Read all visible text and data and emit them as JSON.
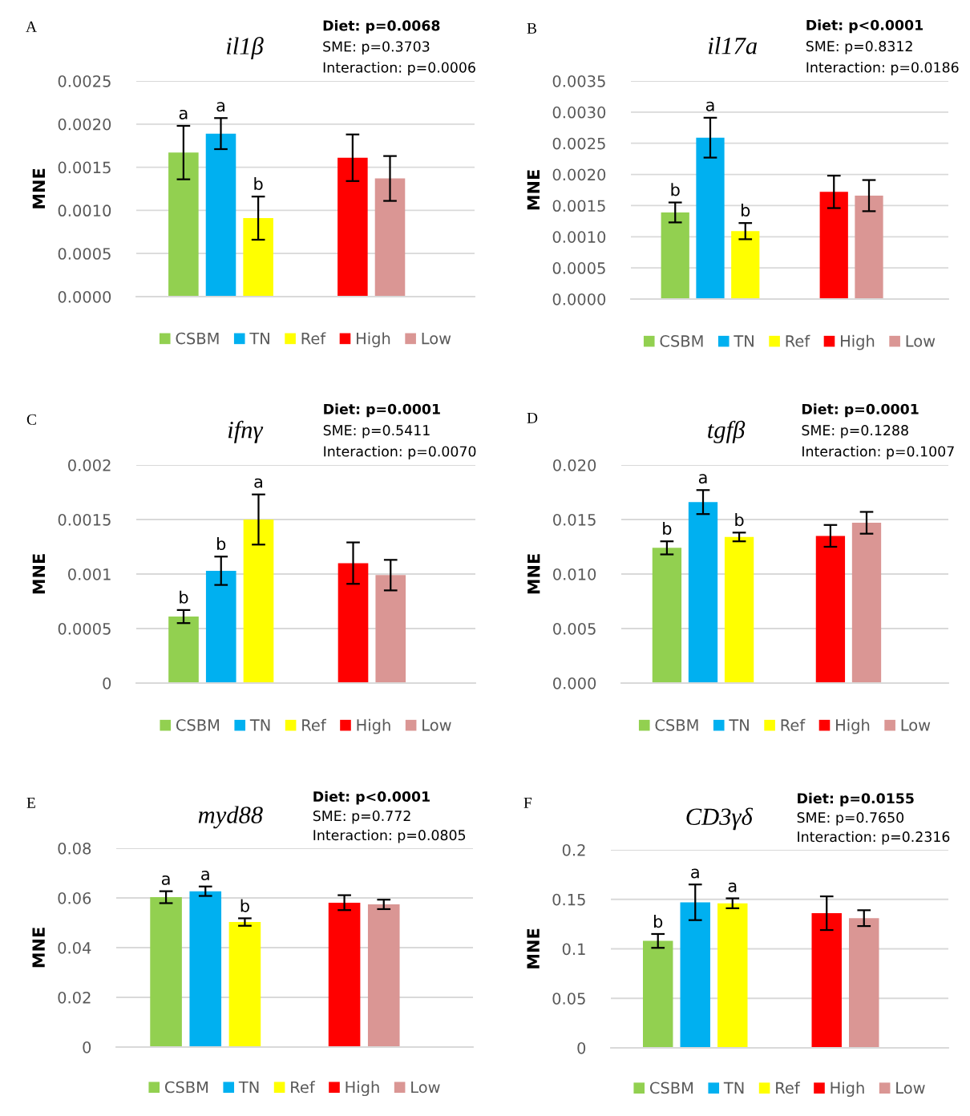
{
  "chart_data": [
    {
      "type": "bar",
      "title": "il1β",
      "ylabel": "MNE",
      "categories": [
        null,
        null
      ],
      "series": [
        {
          "name": "CSBM",
          "color": "#92d050",
          "values": [
            0.00167,
            null
          ],
          "errors": [
            0.00031,
            null
          ],
          "value_labels": [
            "a",
            null
          ]
        },
        {
          "name": "TN",
          "color": "#00b0f0",
          "values": [
            0.00189,
            null
          ],
          "errors": [
            0.00018,
            null
          ],
          "value_labels": [
            "a",
            null
          ]
        },
        {
          "name": "Ref",
          "color": "#ffff00",
          "values": [
            0.00091,
            null
          ],
          "errors": [
            0.00025,
            null
          ],
          "value_labels": [
            "b",
            null
          ]
        },
        {
          "name": "High",
          "color": "#ff0000",
          "values": [
            null,
            0.00161
          ],
          "errors": [
            null,
            0.00027
          ]
        },
        {
          "name": "Low",
          "color": "#da9694",
          "values": [
            null,
            0.00137
          ],
          "errors": [
            null,
            0.00026
          ]
        }
      ],
      "ylim": [
        0,
        0.0025
      ],
      "yticks": [
        {
          "value": 0,
          "label": "0.0000"
        },
        {
          "value": 0.0005,
          "label": "0.0005"
        },
        {
          "value": 0.001,
          "label": "0.0010"
        },
        {
          "value": 0.0015,
          "label": "0.0015"
        },
        {
          "value": 0.002,
          "label": "0.0020"
        },
        {
          "value": 0.0025,
          "label": "0.0025"
        }
      ],
      "grid": "y",
      "legend": "bottom",
      "annotations": [
        "A",
        "Diet: p=0.0068",
        "SME: p=0.3703",
        "Interaction: p=0.0006"
      ]
    },
    {
      "type": "bar",
      "title": "il17a",
      "ylabel": "MNE",
      "categories": [
        null,
        null
      ],
      "series": [
        {
          "name": "CSBM",
          "color": "#92d050",
          "values": [
            0.00139,
            null
          ],
          "errors": [
            0.00016,
            null
          ],
          "value_labels": [
            "b",
            null
          ]
        },
        {
          "name": "TN",
          "color": "#00b0f0",
          "values": [
            0.00259,
            null
          ],
          "errors": [
            0.00032,
            null
          ],
          "value_labels": [
            "a",
            null
          ]
        },
        {
          "name": "Ref",
          "color": "#ffff00",
          "values": [
            0.00109,
            null
          ],
          "errors": [
            0.00013,
            null
          ],
          "value_labels": [
            "b",
            null
          ]
        },
        {
          "name": "High",
          "color": "#ff0000",
          "values": [
            null,
            0.00172
          ],
          "errors": [
            null,
            0.00026
          ]
        },
        {
          "name": "Low",
          "color": "#da9694",
          "values": [
            null,
            0.00166
          ],
          "errors": [
            null,
            0.00025
          ]
        }
      ],
      "ylim": [
        0,
        0.0035
      ],
      "yticks": [
        {
          "value": 0,
          "label": "0.0000"
        },
        {
          "value": 0.0005,
          "label": "0.0005"
        },
        {
          "value": 0.001,
          "label": "0.0010"
        },
        {
          "value": 0.0015,
          "label": "0.0015"
        },
        {
          "value": 0.002,
          "label": "0.0020"
        },
        {
          "value": 0.0025,
          "label": "0.0025"
        },
        {
          "value": 0.003,
          "label": "0.0030"
        },
        {
          "value": 0.0035,
          "label": "0.0035"
        }
      ],
      "grid": "y",
      "legend": "bottom",
      "annotations": [
        "B",
        "Diet: p<0.0001",
        "SME: p=0.8312",
        "Interaction: p=0.0186"
      ]
    },
    {
      "type": "bar",
      "title": "ifnγ",
      "ylabel": "MNE",
      "categories": [
        null,
        null
      ],
      "series": [
        {
          "name": "CSBM",
          "color": "#92d050",
          "values": [
            0.00061,
            null
          ],
          "errors": [
            6e-05,
            null
          ],
          "value_labels": [
            "b",
            null
          ]
        },
        {
          "name": "TN",
          "color": "#00b0f0",
          "values": [
            0.00103,
            null
          ],
          "errors": [
            0.00013,
            null
          ],
          "value_labels": [
            "b",
            null
          ]
        },
        {
          "name": "Ref",
          "color": "#ffff00",
          "values": [
            0.0015,
            null
          ],
          "errors": [
            0.00023,
            null
          ],
          "value_labels": [
            "a",
            null
          ]
        },
        {
          "name": "High",
          "color": "#ff0000",
          "values": [
            null,
            0.0011
          ],
          "errors": [
            null,
            0.00019
          ]
        },
        {
          "name": "Low",
          "color": "#da9694",
          "values": [
            null,
            0.00099
          ],
          "errors": [
            null,
            0.00014
          ]
        }
      ],
      "ylim": [
        0,
        0.002
      ],
      "yticks": [
        0,
        0.0005,
        0.001,
        0.0015,
        0.002
      ],
      "grid": "y",
      "legend": "bottom",
      "annotations": [
        "C",
        "Diet: p=0.0001",
        "SME: p=0.5411",
        "Interaction: p=0.0070"
      ]
    },
    {
      "type": "bar",
      "title": "tgfβ",
      "ylabel": "MNE",
      "categories": [
        null,
        null
      ],
      "series": [
        {
          "name": "CSBM",
          "color": "#92d050",
          "values": [
            0.0124,
            null
          ],
          "errors": [
            0.0006,
            null
          ],
          "value_labels": [
            "b",
            null
          ]
        },
        {
          "name": "TN",
          "color": "#00b0f0",
          "values": [
            0.0166,
            null
          ],
          "errors": [
            0.0011,
            null
          ],
          "value_labels": [
            "a",
            null
          ]
        },
        {
          "name": "Ref",
          "color": "#ffff00",
          "values": [
            0.0134,
            null
          ],
          "errors": [
            0.0004,
            null
          ],
          "value_labels": [
            "b",
            null
          ]
        },
        {
          "name": "High",
          "color": "#ff0000",
          "values": [
            null,
            0.0135
          ],
          "errors": [
            null,
            0.001
          ]
        },
        {
          "name": "Low",
          "color": "#da9694",
          "values": [
            null,
            0.0147
          ],
          "errors": [
            null,
            0.001
          ]
        }
      ],
      "ylim": [
        0,
        0.02
      ],
      "yticks": [
        {
          "value": 0,
          "label": "0.000"
        },
        {
          "value": 0.005,
          "label": "0.005"
        },
        {
          "value": 0.01,
          "label": "0.010"
        },
        {
          "value": 0.015,
          "label": "0.015"
        },
        {
          "value": 0.02,
          "label": "0.020"
        }
      ],
      "grid": "y",
      "legend": "bottom",
      "annotations": [
        "D",
        "Diet: p=0.0001",
        "SME: p=0.1288",
        "Interaction: p=0.1007"
      ]
    },
    {
      "type": "bar",
      "title": "myd88",
      "ylabel": "MNE",
      "categories": [
        null,
        null
      ],
      "series": [
        {
          "name": "CSBM",
          "color": "#92d050",
          "values": [
            0.0603,
            null
          ],
          "errors": [
            0.0024,
            null
          ],
          "value_labels": [
            "a",
            null
          ]
        },
        {
          "name": "TN",
          "color": "#00b0f0",
          "values": [
            0.0627,
            null
          ],
          "errors": [
            0.0019,
            null
          ],
          "value_labels": [
            "a",
            null
          ]
        },
        {
          "name": "Ref",
          "color": "#ffff00",
          "values": [
            0.0503,
            null
          ],
          "errors": [
            0.0015,
            null
          ],
          "value_labels": [
            "b",
            null
          ]
        },
        {
          "name": "High",
          "color": "#ff0000",
          "values": [
            null,
            0.0581
          ],
          "errors": [
            null,
            0.003
          ]
        },
        {
          "name": "Low",
          "color": "#da9694",
          "values": [
            null,
            0.0574
          ],
          "errors": [
            null,
            0.0019
          ]
        }
      ],
      "ylim": [
        0,
        0.08
      ],
      "yticks": [
        0,
        0.02,
        0.04,
        0.06,
        0.08
      ],
      "grid": "y",
      "legend": "bottom",
      "annotations": [
        "E",
        "Diet: p<0.0001",
        "SME: p=0.772",
        "Interaction: p=0.0805"
      ]
    },
    {
      "type": "bar",
      "title": "CD3γδ",
      "ylabel": "MNE",
      "categories": [
        null,
        null
      ],
      "series": [
        {
          "name": "CSBM",
          "color": "#92d050",
          "values": [
            0.108,
            null
          ],
          "errors": [
            0.007,
            null
          ],
          "value_labels": [
            "b",
            null
          ]
        },
        {
          "name": "TN",
          "color": "#00b0f0",
          "values": [
            0.147,
            null
          ],
          "errors": [
            0.018,
            null
          ],
          "value_labels": [
            "a",
            null
          ]
        },
        {
          "name": "Ref",
          "color": "#ffff00",
          "values": [
            0.146,
            null
          ],
          "errors": [
            0.005,
            null
          ],
          "value_labels": [
            "a",
            null
          ]
        },
        {
          "name": "High",
          "color": "#ff0000",
          "values": [
            null,
            0.136
          ],
          "errors": [
            null,
            0.017
          ]
        },
        {
          "name": "Low",
          "color": "#da9694",
          "values": [
            null,
            0.131
          ],
          "errors": [
            null,
            0.008
          ]
        }
      ],
      "ylim": [
        0,
        0.2
      ],
      "yticks": [
        0,
        0.05,
        0.1,
        0.15,
        0.2
      ],
      "grid": "y",
      "legend": "bottom",
      "annotations": [
        "F",
        "Diet: p=0.0155",
        "SME: p=0.7650",
        "Interaction: p=0.2316"
      ]
    }
  ]
}
